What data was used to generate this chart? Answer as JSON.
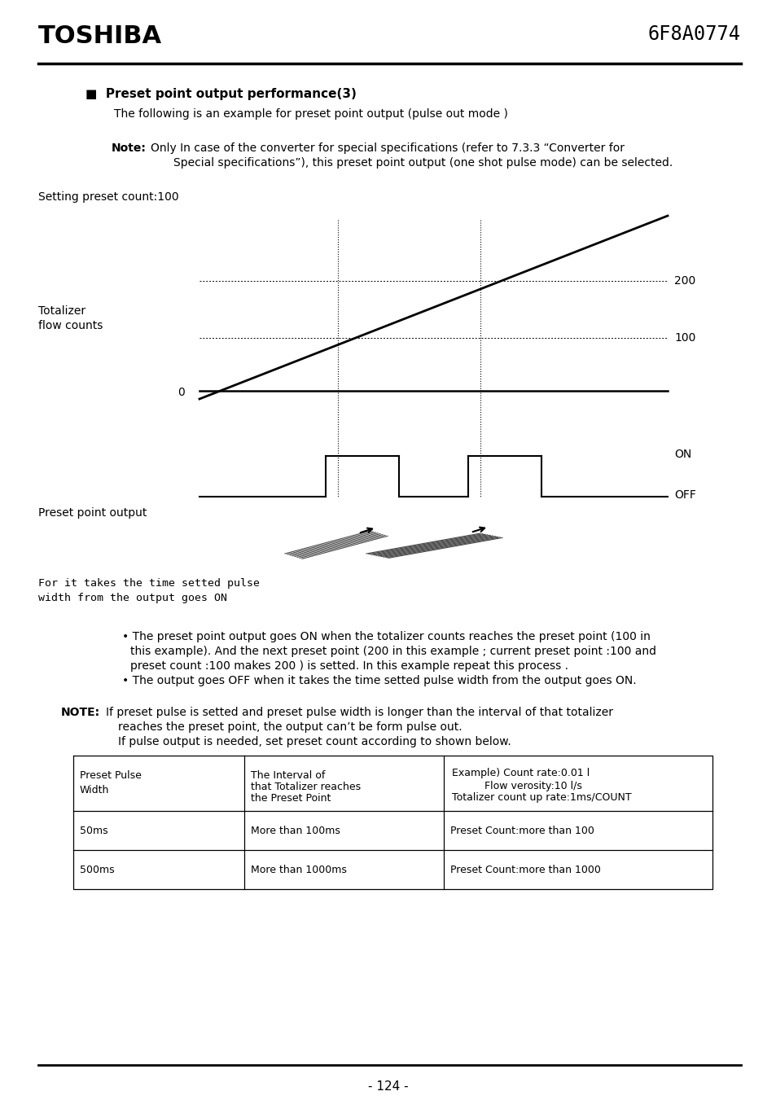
{
  "page_title_left": "TOSHIBA",
  "page_title_right": "6F8A0774",
  "section_title": "■  Preset point output performance(3)",
  "subtitle1": "The following is an example for preset point output (pulse out mode )",
  "note_bold": "Note:",
  "setting_label": "Setting preset count:100",
  "totalizer_label_line1": "Totalizer",
  "totalizer_label_line2": "flow counts",
  "zero_label": "0",
  "label_200": "200",
  "label_100": "100",
  "preset_label": "Preset point output",
  "on_label": "ON",
  "off_label": "OFF",
  "annotation_line1": "For it takes the time setted pulse",
  "annotation_line2": "width from the output goes ON",
  "note2_bold": "NOTE:",
  "page_number": "- 124 -",
  "background_color": "#ffffff",
  "text_color": "#000000",
  "line_color": "#000000"
}
